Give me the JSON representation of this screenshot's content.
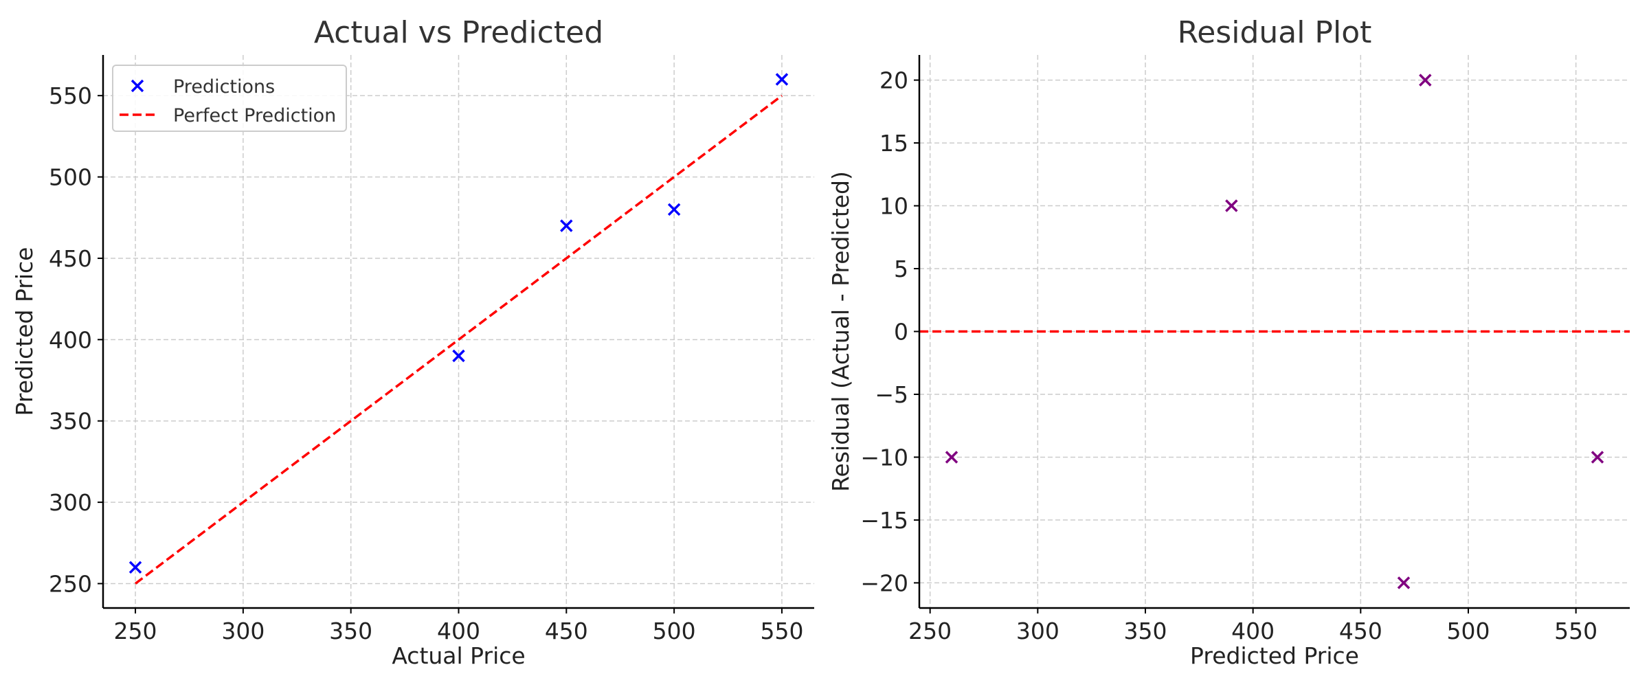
{
  "chart_data": [
    {
      "type": "scatter",
      "title": "Actual vs Predicted",
      "xlabel": "Actual Price",
      "ylabel": "Predicted Price",
      "xlim": [
        235,
        565
      ],
      "ylim": [
        235,
        575
      ],
      "xticks": [
        250,
        300,
        350,
        400,
        450,
        500,
        550
      ],
      "yticks": [
        250,
        300,
        350,
        400,
        450,
        500,
        550
      ],
      "grid": true,
      "legend": "top-left",
      "series": [
        {
          "name": "Predictions",
          "kind": "scatter",
          "marker": "x",
          "color": "#0000ff",
          "x": [
            250,
            400,
            450,
            500,
            550
          ],
          "y": [
            260,
            390,
            470,
            480,
            560
          ]
        },
        {
          "name": "Perfect Prediction",
          "kind": "line",
          "style": "dashed",
          "color": "#ff0000",
          "x": [
            250,
            550
          ],
          "y": [
            250,
            550
          ]
        }
      ]
    },
    {
      "type": "scatter",
      "title": "Residual Plot",
      "xlabel": "Predicted Price",
      "ylabel": "Residual (Actual - Predicted)",
      "xlim": [
        245,
        575
      ],
      "ylim": [
        -22,
        22
      ],
      "xticks": [
        250,
        300,
        350,
        400,
        450,
        500,
        550
      ],
      "yticks": [
        -20,
        -15,
        -10,
        -5,
        0,
        5,
        10,
        15,
        20
      ],
      "grid": true,
      "series": [
        {
          "kind": "scatter",
          "marker": "x",
          "color": "#800080",
          "x": [
            260,
            390,
            470,
            480,
            560
          ],
          "y": [
            -10,
            10,
            -20,
            20,
            -10
          ]
        },
        {
          "kind": "hline",
          "style": "dashed",
          "color": "#ff0000",
          "y": 0
        }
      ]
    }
  ]
}
